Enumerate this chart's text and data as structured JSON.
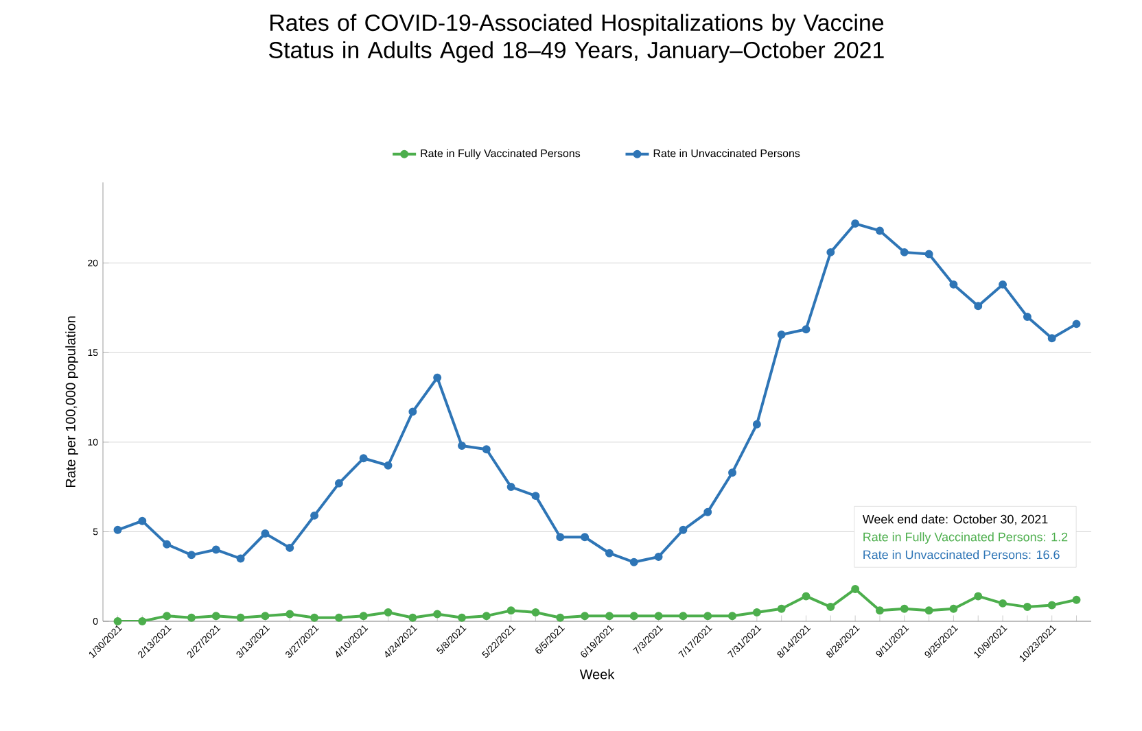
{
  "chart_data": {
    "type": "line",
    "title": "Rates of COVID-19-Associated Hospitalizations by Vaccine Status in Adults Aged 18–49 Years, January–October 2021",
    "xlabel": "Week",
    "ylabel": "Rate per 100,000 population",
    "categories": [
      "1/30/2021",
      null,
      "2/13/2021",
      null,
      "2/27/2021",
      null,
      "3/13/2021",
      null,
      "3/27/2021",
      null,
      "4/10/2021",
      null,
      "4/24/2021",
      null,
      "5/8/2021",
      null,
      "5/22/2021",
      null,
      "6/5/2021",
      null,
      "6/19/2021",
      null,
      "7/3/2021",
      null,
      "7/17/2021",
      null,
      "7/31/2021",
      null,
      "8/14/2021",
      null,
      "8/28/2021",
      null,
      "9/11/2021",
      null,
      "9/25/2021",
      null,
      "10/9/2021",
      null,
      "10/23/2021",
      null
    ],
    "series": [
      {
        "name": "Rate in Fully Vaccinated Persons",
        "color": "#4cae4c",
        "values": [
          0.0,
          0.0,
          0.3,
          0.2,
          0.3,
          0.2,
          0.3,
          0.4,
          0.2,
          0.2,
          0.3,
          0.5,
          0.2,
          0.4,
          0.2,
          0.3,
          0.6,
          0.5,
          0.2,
          0.3,
          0.3,
          0.3,
          0.3,
          0.3,
          0.3,
          0.3,
          0.5,
          0.7,
          1.4,
          0.8,
          1.8,
          0.6,
          0.7,
          0.6,
          0.7,
          1.4,
          1.0,
          0.8,
          0.9,
          1.2
        ]
      },
      {
        "name": "Rate in Unvaccinated Persons",
        "color": "#2e75b6",
        "values": [
          5.1,
          5.6,
          4.3,
          3.7,
          4.0,
          3.5,
          4.9,
          4.1,
          5.9,
          7.7,
          9.1,
          8.7,
          11.7,
          13.6,
          9.8,
          9.6,
          7.5,
          7.0,
          4.7,
          4.7,
          3.8,
          3.3,
          3.6,
          5.1,
          6.1,
          8.3,
          11.0,
          16.0,
          16.3,
          20.6,
          22.2,
          21.8,
          20.6,
          20.5,
          18.8,
          17.6,
          18.8,
          17.0,
          15.8,
          16.6
        ]
      }
    ],
    "annotations": [
      "Week end date: October 30, 2021",
      "Rate in Fully Vaccinated Persons: 1.2",
      "Rate in Unvaccinated Persons: 16.6"
    ],
    "ylim": [
      0,
      24.5
    ],
    "yticks": [
      0,
      5,
      10,
      15,
      20
    ],
    "grid": "y",
    "legend": "top",
    "marker": "circle",
    "line_style": "solid"
  }
}
